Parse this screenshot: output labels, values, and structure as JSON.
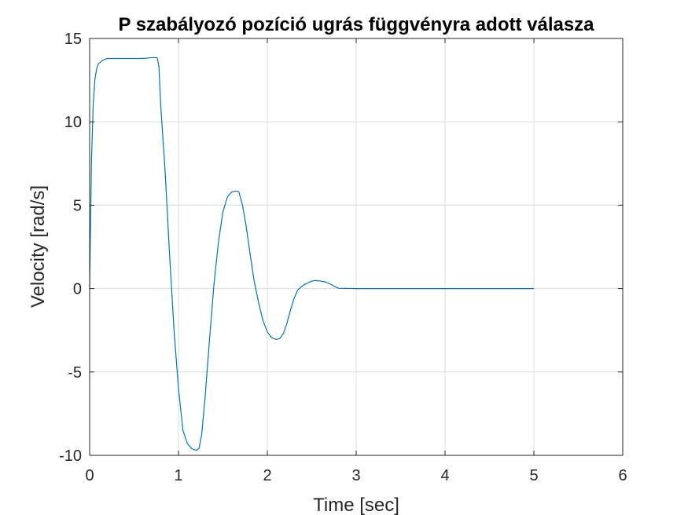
{
  "chart_data": {
    "type": "line",
    "title": "P szabályozó pozíció ugrás függvényra adott válasza",
    "xlabel": "Time [sec]",
    "ylabel": "Velocity [rad/s]",
    "xlim": [
      0,
      6
    ],
    "ylim": [
      -10,
      15
    ],
    "xticks": [
      0,
      1,
      2,
      3,
      4,
      5,
      6
    ],
    "yticks": [
      -10,
      -5,
      0,
      5,
      10,
      15
    ],
    "xtick_labels": [
      "0",
      "1",
      "2",
      "3",
      "4",
      "5",
      "6"
    ],
    "ytick_labels": [
      "-10",
      "-5",
      "0",
      "5",
      "10",
      "15"
    ],
    "grid": true,
    "line_color": "#0072bd",
    "series": [
      {
        "x": [
          0,
          0.02,
          0.04,
          0.06,
          0.08,
          0.1,
          0.15,
          0.2,
          0.25,
          0.3,
          0.4,
          0.5,
          0.6,
          0.7,
          0.76,
          0.78,
          0.8,
          0.85,
          0.9,
          0.95,
          1.0,
          1.05,
          1.1,
          1.15,
          1.2,
          1.23,
          1.26,
          1.3,
          1.35,
          1.4,
          1.45,
          1.5,
          1.55,
          1.6,
          1.65,
          1.68,
          1.72,
          1.76,
          1.8,
          1.85,
          1.9,
          1.95,
          2.0,
          2.05,
          2.1,
          2.14,
          2.18,
          2.22,
          2.26,
          2.3,
          2.34,
          2.38,
          2.42,
          2.46,
          2.5,
          2.55,
          2.6,
          2.65,
          2.7,
          2.75,
          2.8,
          3.0,
          3.5,
          4.0,
          4.5,
          5.0
        ],
        "y": [
          0,
          7.5,
          11.0,
          12.6,
          13.2,
          13.5,
          13.7,
          13.8,
          13.8,
          13.8,
          13.8,
          13.8,
          13.8,
          13.85,
          13.85,
          13.3,
          11.0,
          7.0,
          2.0,
          -2.5,
          -6.0,
          -8.5,
          -9.3,
          -9.6,
          -9.7,
          -9.6,
          -8.8,
          -6.5,
          -3.0,
          0.3,
          2.8,
          4.6,
          5.5,
          5.8,
          5.85,
          5.8,
          5.0,
          3.8,
          2.3,
          0.5,
          -0.8,
          -1.9,
          -2.6,
          -2.95,
          -3.05,
          -3.0,
          -2.7,
          -2.1,
          -1.3,
          -0.6,
          -0.1,
          0.1,
          0.25,
          0.35,
          0.45,
          0.48,
          0.45,
          0.4,
          0.3,
          0.15,
          0.02,
          0,
          0,
          0,
          0,
          0
        ]
      }
    ]
  }
}
